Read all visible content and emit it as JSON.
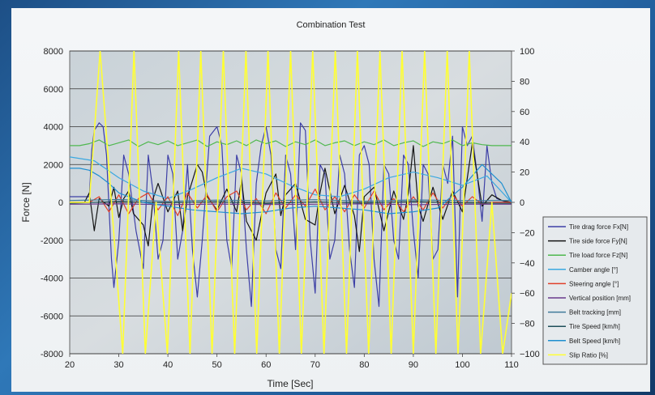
{
  "chart_data": {
    "type": "line",
    "title": "Combination Test",
    "xlabel": "Time [Sec]",
    "ylabel": "Force [N]",
    "xlim": [
      20,
      110
    ],
    "ylim": [
      -8000,
      8000
    ],
    "y2lim": [
      -100,
      100
    ],
    "xticks": [
      "20",
      "30",
      "40",
      "50",
      "60",
      "70",
      "80",
      "90",
      "100",
      "110"
    ],
    "yticks": [
      "8000",
      "6000",
      "4000",
      "2000",
      "0",
      "-2000",
      "-4000",
      "-6000",
      "-8000"
    ],
    "y2ticks": [
      "100",
      "80",
      "60",
      "40",
      "20",
      "0",
      "-20",
      "-40",
      "-60",
      "-80",
      "-100"
    ],
    "grid": "horizontal",
    "legend_position": "bottom-right",
    "series": [
      {
        "name": "Tire drag force Fx[N]",
        "color": "#3d3fa6",
        "axis": "left",
        "x": [
          20,
          24,
          24.5,
          25,
          26,
          26.8,
          27.5,
          28.5,
          29,
          30,
          31,
          32,
          33.5,
          35,
          36,
          37,
          38,
          39,
          40,
          41,
          42,
          43,
          44,
          45,
          46,
          47,
          48.5,
          50,
          51,
          52,
          53,
          54,
          55,
          56,
          57,
          58,
          59,
          60,
          61,
          62,
          63,
          64,
          65,
          66,
          67,
          68,
          69,
          70,
          71,
          72,
          73,
          74,
          75,
          76,
          77,
          78,
          79,
          80,
          81,
          82,
          83,
          84,
          85,
          86,
          87,
          88,
          89,
          90,
          91,
          92,
          93,
          94,
          95,
          96,
          97,
          98,
          99,
          100,
          101,
          102,
          103,
          104,
          105,
          106,
          107,
          108,
          109,
          110
        ],
        "y": [
          300,
          300,
          2800,
          3800,
          4200,
          4000,
          2500,
          -3000,
          -4500,
          -2000,
          2500,
          1500,
          -1500,
          -3500,
          2500,
          500,
          -3000,
          -2000,
          2500,
          1500,
          -3000,
          -1500,
          2000,
          -2500,
          -5000,
          -2000,
          3500,
          4000,
          3000,
          -2000,
          -3500,
          2500,
          1500,
          -2500,
          -5500,
          1000,
          3000,
          4000,
          2500,
          -2500,
          -3500,
          2500,
          1500,
          -2500,
          4200,
          3800,
          -2000,
          -4800,
          2000,
          1500,
          -3000,
          -2000,
          2500,
          1500,
          -2500,
          -4500,
          2500,
          3000,
          2000,
          -3000,
          -5500,
          2000,
          1500,
          -2000,
          -3000,
          2500,
          2000,
          -1500,
          -4000,
          2000,
          1500,
          -3000,
          -2500,
          2000,
          1000,
          3500,
          -5000,
          4000,
          3000,
          3500,
          1500,
          -1000,
          3000,
          1000,
          200,
          100,
          0,
          0
        ]
      },
      {
        "name": "Tire side force Fy[N]",
        "color": "#141414",
        "axis": "left",
        "x": [
          20,
          23,
          24,
          25,
          26,
          28,
          29,
          30,
          31,
          32,
          33,
          35,
          36,
          37,
          38,
          40,
          42,
          43,
          44,
          46,
          47,
          48,
          50,
          52,
          54,
          55,
          56,
          58,
          60,
          62,
          63,
          64,
          66,
          68,
          70,
          71,
          72,
          74,
          76,
          78,
          79,
          80,
          82,
          84,
          86,
          88,
          89,
          90,
          91,
          92,
          94,
          96,
          98,
          100,
          102,
          104,
          106,
          108,
          110
        ],
        "y": [
          0,
          0,
          500,
          -1500,
          200,
          -200,
          800,
          -800,
          200,
          600,
          -600,
          -1200,
          -2300,
          200,
          1000,
          -500,
          600,
          -1500,
          300,
          2000,
          1600,
          300,
          -400,
          700,
          -500,
          1200,
          -1000,
          -2000,
          500,
          1500,
          -700,
          400,
          1000,
          -900,
          -1200,
          500,
          1800,
          -600,
          900,
          -700,
          -2600,
          300,
          800,
          -1500,
          600,
          -900,
          500,
          3000,
          -200,
          -1000,
          800,
          -900,
          600,
          -500,
          3100,
          -200,
          400,
          100,
          0
        ]
      },
      {
        "name": "Tire load force Fz[N]",
        "color": "#4fb84f",
        "axis": "left",
        "x": [
          20,
          22,
          24,
          26,
          28,
          30,
          32,
          34,
          36,
          38,
          40,
          42,
          44,
          46,
          48,
          50,
          52,
          54,
          56,
          58,
          60,
          62,
          64,
          66,
          68,
          70,
          72,
          74,
          76,
          78,
          80,
          82,
          84,
          86,
          88,
          90,
          92,
          94,
          96,
          98,
          100,
          102,
          104,
          106,
          108,
          110
        ],
        "y": [
          3000,
          3000,
          3100,
          3300,
          3000,
          3150,
          3300,
          2950,
          3200,
          3050,
          3250,
          3000,
          3150,
          3300,
          2950,
          3200,
          3050,
          3250,
          3000,
          3300,
          3100,
          3250,
          2950,
          3200,
          3050,
          3300,
          3000,
          3150,
          3250,
          3000,
          3200,
          3050,
          3300,
          3000,
          3150,
          3250,
          2950,
          3200,
          3100,
          3300,
          3000,
          3150,
          3050,
          3000,
          3000,
          3000
        ]
      },
      {
        "name": "Camber angle [°]",
        "color": "#3aa8e0",
        "axis": "left",
        "x": [
          20,
          25,
          30,
          35,
          40,
          45,
          50,
          55,
          60,
          65,
          70,
          75,
          80,
          85,
          90,
          95,
          100,
          105,
          110
        ],
        "y": [
          2400,
          2200,
          1300,
          600,
          200,
          700,
          1300,
          1800,
          1500,
          900,
          400,
          300,
          700,
          1300,
          1600,
          1300,
          900,
          1400,
          0
        ]
      },
      {
        "name": "Steering angle [°]",
        "color": "#e0402a",
        "axis": "left",
        "x": [
          20,
          24,
          26,
          28,
          30,
          32,
          34,
          36,
          38,
          40,
          42,
          44,
          46,
          48,
          50,
          52,
          54,
          56,
          58,
          60,
          62,
          64,
          66,
          68,
          70,
          72,
          74,
          76,
          78,
          80,
          82,
          84,
          86,
          88,
          90,
          92,
          94,
          96,
          98,
          100,
          102,
          104,
          106,
          110
        ],
        "y": [
          0,
          0,
          300,
          -500,
          400,
          -600,
          200,
          500,
          -400,
          300,
          -700,
          500,
          -300,
          400,
          -500,
          300,
          600,
          -400,
          200,
          -600,
          500,
          -300,
          400,
          -200,
          700,
          -400,
          300,
          -500,
          400,
          -300,
          600,
          -400,
          200,
          -500,
          300,
          -400,
          500,
          -300,
          400,
          -200,
          300,
          -100,
          0,
          0
        ]
      },
      {
        "name": "Vertical position [mm]",
        "color": "#6a3a8c",
        "axis": "left",
        "x": [
          20,
          30,
          40,
          50,
          60,
          70,
          80,
          90,
          100,
          110
        ],
        "y": [
          -100,
          -80,
          -120,
          -90,
          -110,
          -100,
          -80,
          -120,
          -100,
          -100
        ]
      },
      {
        "name": "Belt tracking [mm]",
        "color": "#3f7a9a",
        "axis": "left",
        "x": [
          20,
          30,
          40,
          50,
          60,
          70,
          80,
          90,
          100,
          110
        ],
        "y": [
          100,
          150,
          50,
          120,
          80,
          140,
          60,
          130,
          90,
          100
        ]
      },
      {
        "name": "Tire Speed [km/h]",
        "color": "#1f4f5a",
        "axis": "left",
        "x": [
          20,
          30,
          40,
          50,
          60,
          70,
          80,
          90,
          100,
          110
        ],
        "y": [
          -50,
          50,
          -30,
          40,
          -60,
          30,
          -40,
          50,
          -30,
          -50
        ]
      },
      {
        "name": "Belt Speed [km/h]",
        "color": "#1f8fd0",
        "axis": "left",
        "x": [
          20,
          22,
          24,
          26,
          28,
          30,
          35,
          40,
          45,
          50,
          55,
          60,
          65,
          70,
          75,
          80,
          85,
          90,
          95,
          100,
          104,
          106,
          108,
          110
        ],
        "y": [
          1800,
          1800,
          1700,
          1400,
          1000,
          500,
          0,
          -200,
          -400,
          -500,
          -600,
          -500,
          -300,
          -200,
          -300,
          -400,
          -600,
          -500,
          -300,
          800,
          2000,
          1500,
          1000,
          0
        ]
      },
      {
        "name": "Slip Ratio [%]",
        "color": "#ffff33",
        "axis": "right",
        "x": [
          20,
          22,
          24,
          26.2,
          28.5,
          30.8,
          33.1,
          35.4,
          37.6,
          39.9,
          42.2,
          44.5,
          46.7,
          49,
          51.3,
          53.6,
          55.9,
          58.1,
          60.4,
          62.7,
          65,
          67.2,
          69.5,
          71.8,
          74.1,
          76.4,
          78.6,
          80.9,
          83.2,
          85.5,
          87.7,
          90,
          92.3,
          94.6,
          96.9,
          99.1,
          101.4,
          103.7,
          106,
          108.2,
          110
        ],
        "y": [
          0,
          0,
          0,
          100,
          0,
          -100,
          100,
          -100,
          0,
          -100,
          100,
          -100,
          100,
          -100,
          100,
          -100,
          100,
          -100,
          100,
          -100,
          100,
          -100,
          100,
          -100,
          100,
          -100,
          100,
          -100,
          100,
          -100,
          100,
          -100,
          100,
          -100,
          100,
          -100,
          100,
          -100,
          0,
          -100,
          -60
        ]
      }
    ]
  }
}
